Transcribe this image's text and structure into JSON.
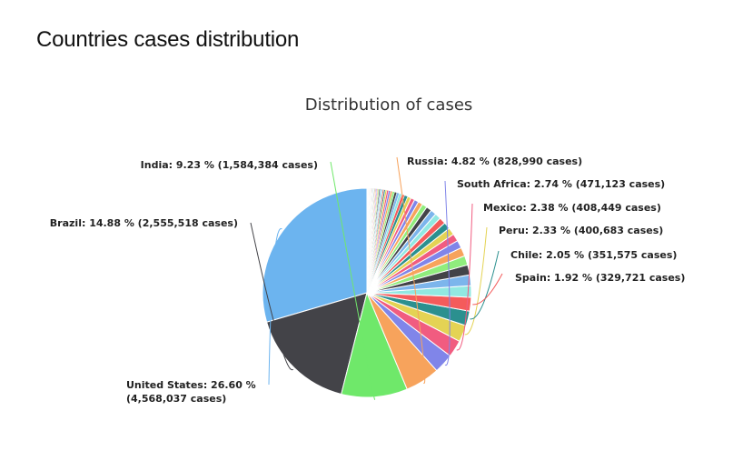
{
  "page": {
    "heading": "Countries cases distribution"
  },
  "chart_data": {
    "type": "pie",
    "title": "Distribution of cases",
    "colors": {
      "United States": "#6cb4ef",
      "Brazil": "#434348",
      "India": "#6fe86a",
      "Russia": "#f7a35c",
      "South Africa": "#8085e9",
      "Mexico": "#f15c80",
      "Peru": "#e4d354",
      "Chile": "#2b908f",
      "Spain": "#f45b5b",
      "others": [
        "#91e8e1",
        "#7cb5ec",
        "#434348",
        "#90ed7d",
        "#f7a35c",
        "#8085e9",
        "#f15c80",
        "#e4d354",
        "#2b908f",
        "#f45b5b"
      ]
    },
    "slices": [
      {
        "name": "United States",
        "percent": 26.6,
        "cases": "4,568,037",
        "label_line1": "United States: 26.60 %",
        "label_line2": "(4,568,037 cases)"
      },
      {
        "name": "Brazil",
        "percent": 14.88,
        "cases": "2,555,518",
        "label_line1": "Brazil: 14.88 % (2,555,518 cases)"
      },
      {
        "name": "India",
        "percent": 9.23,
        "cases": "1,584,384",
        "label_line1": "India: 9.23 % (1,584,384 cases)"
      },
      {
        "name": "Russia",
        "percent": 4.82,
        "cases": "828,990",
        "label_line1": "Russia: 4.82 % (828,990 cases)"
      },
      {
        "name": "South Africa",
        "percent": 2.74,
        "cases": "471,123",
        "label_line1": "South Africa: 2.74 % (471,123 cases)"
      },
      {
        "name": "Mexico",
        "percent": 2.38,
        "cases": "408,449",
        "label_line1": "Mexico: 2.38 % (408,449 cases)"
      },
      {
        "name": "Peru",
        "percent": 2.33,
        "cases": "400,683",
        "label_line1": "Peru: 2.33 % (400,683 cases)"
      },
      {
        "name": "Chile",
        "percent": 2.05,
        "cases": "351,575",
        "label_line1": "Chile: 2.05 % (351,575 cases)"
      },
      {
        "name": "Spain",
        "percent": 1.92,
        "cases": "329,721",
        "label_line1": "Spain: 1.92 % (329,721 cases)"
      }
    ],
    "other_slices_percent": [
      1.6,
      1.5,
      1.4,
      1.3,
      1.2,
      1.1,
      1.05,
      1.0,
      0.95,
      0.9,
      0.85,
      0.8,
      0.75,
      0.7,
      0.65,
      0.6,
      0.55,
      0.5,
      0.45,
      0.4,
      0.38,
      0.35,
      0.32,
      0.3,
      0.28,
      0.26,
      0.24,
      0.22,
      0.2,
      0.18,
      0.17,
      0.16,
      0.15,
      0.14,
      0.13,
      0.12,
      0.11,
      0.1,
      0.09,
      0.08,
      0.08,
      0.07,
      0.07,
      0.06,
      0.06,
      0.05,
      0.05,
      0.05,
      0.04,
      0.04,
      0.04,
      0.03,
      0.03,
      0.03,
      0.03,
      0.02,
      0.02,
      0.02,
      0.02,
      0.02,
      0.02,
      0.02,
      0.01,
      0.01,
      0.01,
      0.01
    ]
  }
}
